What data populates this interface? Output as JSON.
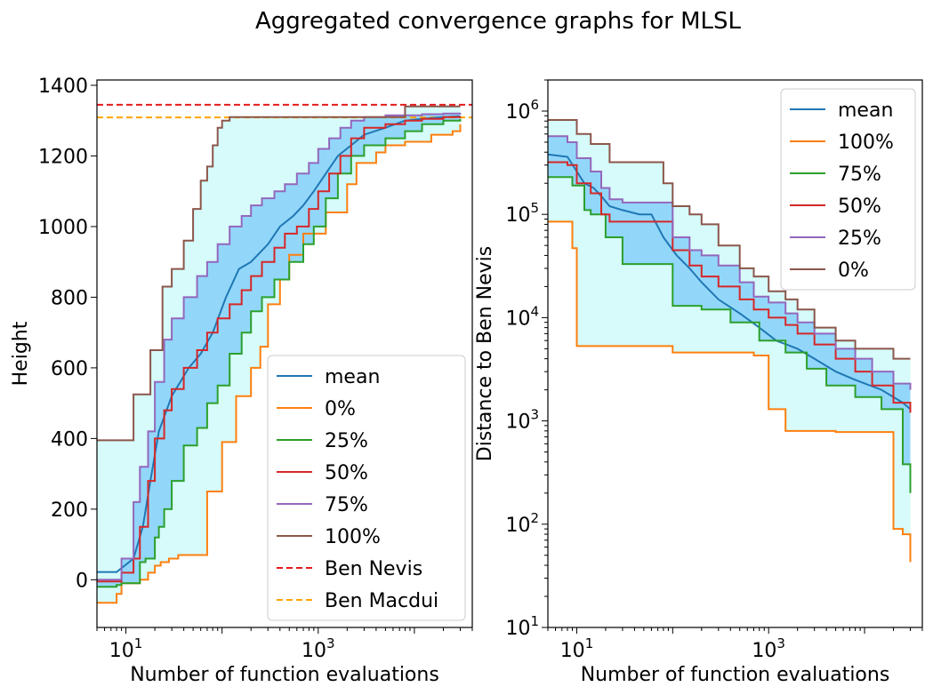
{
  "figure": {
    "title": "Aggregated convergence graphs for MLSL"
  },
  "chart_data": [
    {
      "type": "line",
      "title": "",
      "xlabel": "Number of function evaluations",
      "ylabel": "Height",
      "xscale": "log",
      "xlim": [
        5,
        40000
      ],
      "ylim": [
        -135,
        1415
      ],
      "xticks": [
        {
          "value": 10,
          "base": "10",
          "exp": "1"
        },
        {
          "value": 1000,
          "base": "10",
          "exp": "3"
        }
      ],
      "yticks": [
        0,
        200,
        400,
        600,
        800,
        1000,
        1200,
        1400
      ],
      "legend_position": "lower-right",
      "grid": false,
      "bands": [
        {
          "lower": "0%",
          "upper": "100%",
          "color": "#d6fbfa"
        },
        {
          "lower": "25%",
          "upper": "75%",
          "color": "#92d7f9"
        }
      ],
      "series": [
        {
          "name": "mean",
          "color": "#1f77b4",
          "step": false,
          "x": [
            5,
            8,
            12,
            15,
            18,
            22,
            30,
            45,
            60,
            80,
            110,
            150,
            200,
            300,
            400,
            550,
            700,
            900,
            1200,
            1600,
            2200,
            3000,
            5000,
            8000,
            12000,
            20000,
            30000
          ],
          "y": [
            22,
            22,
            60,
            150,
            280,
            420,
            520,
            600,
            640,
            700,
            800,
            880,
            900,
            950,
            1000,
            1030,
            1060,
            1100,
            1150,
            1200,
            1230,
            1260,
            1280,
            1300,
            1305,
            1310,
            1312
          ]
        },
        {
          "name": "0%",
          "color": "#ff7f0e",
          "step": true,
          "x": [
            5,
            7,
            8,
            9,
            14,
            17,
            20,
            23,
            28,
            35,
            60,
            70,
            100,
            140,
            200,
            250,
            300,
            400,
            500,
            700,
            1200,
            2000,
            2500,
            4000,
            5000,
            8000,
            15000,
            25000,
            30000
          ],
          "y": [
            -65,
            -65,
            -40,
            -10,
            0,
            20,
            40,
            50,
            60,
            70,
            70,
            250,
            390,
            520,
            600,
            660,
            780,
            850,
            920,
            980,
            1040,
            1120,
            1180,
            1210,
            1230,
            1240,
            1260,
            1270,
            1290
          ]
        },
        {
          "name": "25%",
          "color": "#2ca02c",
          "step": true,
          "x": [
            5,
            8,
            9,
            14,
            16,
            20,
            22,
            25,
            30,
            40,
            55,
            70,
            90,
            120,
            160,
            200,
            260,
            350,
            500,
            700,
            900,
            1200,
            1600,
            2200,
            3000,
            5000,
            8000,
            12000,
            20000,
            30000
          ],
          "y": [
            -20,
            -15,
            -10,
            50,
            60,
            120,
            150,
            200,
            280,
            380,
            430,
            500,
            550,
            640,
            700,
            760,
            800,
            850,
            900,
            950,
            1000,
            1080,
            1150,
            1200,
            1230,
            1250,
            1270,
            1290,
            1300,
            1305
          ]
        },
        {
          "name": "50%",
          "color": "#d62728",
          "step": true,
          "x": [
            5,
            8,
            9,
            12,
            14,
            17,
            20,
            25,
            30,
            40,
            55,
            70,
            90,
            120,
            160,
            200,
            260,
            350,
            450,
            600,
            800,
            1000,
            1300,
            1700,
            2200,
            3000,
            5000,
            8000,
            12000,
            20000,
            30000
          ],
          "y": [
            -5,
            -5,
            20,
            60,
            150,
            280,
            400,
            480,
            540,
            600,
            650,
            700,
            740,
            780,
            820,
            860,
            900,
            940,
            980,
            1000,
            1050,
            1100,
            1150,
            1200,
            1250,
            1280,
            1290,
            1300,
            1305,
            1310,
            1312
          ]
        },
        {
          "name": "75%",
          "color": "#9467bd",
          "step": true,
          "x": [
            5,
            8,
            9,
            12,
            14,
            17,
            20,
            25,
            30,
            40,
            55,
            70,
            90,
            120,
            160,
            200,
            260,
            350,
            450,
            600,
            800,
            1000,
            1300,
            1700,
            2200,
            3000,
            5000,
            8000,
            12000,
            20000,
            30000
          ],
          "y": [
            0,
            0,
            60,
            220,
            320,
            420,
            560,
            680,
            740,
            800,
            860,
            900,
            950,
            1000,
            1030,
            1060,
            1080,
            1100,
            1120,
            1150,
            1180,
            1220,
            1250,
            1280,
            1300,
            1310,
            1315,
            1315,
            1318,
            1320,
            1322
          ]
        },
        {
          "name": "100%",
          "color": "#8c564b",
          "step": true,
          "x": [
            5,
            9,
            12,
            18,
            24,
            30,
            40,
            50,
            60,
            70,
            80,
            90,
            100,
            120,
            150,
            200,
            300,
            400,
            500,
            700,
            1000,
            2000,
            5000,
            8000,
            15000,
            25000,
            30000
          ],
          "y": [
            395,
            395,
            525,
            650,
            830,
            880,
            960,
            1050,
            1130,
            1170,
            1230,
            1280,
            1300,
            1310,
            1310,
            1310,
            1310,
            1310,
            1310,
            1310,
            1310,
            1310,
            1310,
            1340,
            1340,
            1340,
            1340
          ]
        }
      ],
      "hlines": [
        {
          "name": "Ben Nevis",
          "value": 1345,
          "color": "#e41a1c",
          "dash": "dashed"
        },
        {
          "name": "Ben Macdui",
          "value": 1309,
          "color": "#ffa500",
          "dash": "dashed"
        }
      ]
    },
    {
      "type": "line",
      "title": "",
      "xlabel": "Number of function evaluations",
      "ylabel": "Distance to Ben Nevis",
      "xscale": "log",
      "yscale": "log",
      "xlim": [
        5,
        40000
      ],
      "ylim": [
        10,
        2000000
      ],
      "xticks": [
        {
          "value": 10,
          "base": "10",
          "exp": "1"
        },
        {
          "value": 1000,
          "base": "10",
          "exp": "3"
        }
      ],
      "yticks": [
        {
          "value": 10,
          "base": "10",
          "exp": "1"
        },
        {
          "value": 100,
          "base": "10",
          "exp": "2"
        },
        {
          "value": 1000,
          "base": "10",
          "exp": "3"
        },
        {
          "value": 10000,
          "base": "10",
          "exp": "4"
        },
        {
          "value": 100000,
          "base": "10",
          "exp": "5"
        },
        {
          "value": 1000000,
          "base": "10",
          "exp": "6"
        }
      ],
      "legend_position": "upper-right",
      "grid": false,
      "bands": [
        {
          "lower": "100%",
          "upper": "0%",
          "color": "#d6fbfa"
        },
        {
          "lower": "75%",
          "upper": "25%",
          "color": "#92d7f9"
        }
      ],
      "series": [
        {
          "name": "mean",
          "color": "#1f77b4",
          "step": false,
          "x": [
            5,
            8,
            12,
            15,
            18,
            22,
            30,
            45,
            60,
            80,
            110,
            150,
            200,
            300,
            500,
            800,
            1200,
            2000,
            3000,
            5000,
            8000,
            15000,
            25000,
            30000
          ],
          "y": [
            380000,
            360000,
            200000,
            180000,
            150000,
            120000,
            110000,
            100000,
            100000,
            60000,
            40000,
            30000,
            22000,
            15000,
            11000,
            8000,
            6000,
            5000,
            4000,
            3000,
            2500,
            2000,
            1500,
            1300
          ]
        },
        {
          "name": "100%",
          "color": "#ff7f0e",
          "step": true,
          "x": [
            5,
            7,
            8,
            9,
            10,
            20,
            100,
            300,
            700,
            1000,
            1500,
            2000,
            5000,
            15000,
            20000,
            25000,
            30000
          ],
          "y": [
            85000,
            85000,
            85000,
            47000,
            5300,
            5300,
            4600,
            4600,
            4300,
            1300,
            800,
            800,
            780,
            780,
            90,
            80,
            43
          ]
        },
        {
          "name": "75%",
          "color": "#2ca02c",
          "step": true,
          "x": [
            5,
            8,
            9,
            12,
            14,
            17,
            20,
            30,
            60,
            100,
            200,
            400,
            800,
            1500,
            2500,
            4000,
            8000,
            15000,
            25000,
            30000
          ],
          "y": [
            230000,
            230000,
            190000,
            110000,
            100000,
            100000,
            60000,
            33000,
            33000,
            13000,
            12000,
            9000,
            6000,
            4600,
            3200,
            2200,
            1700,
            1300,
            380,
            200
          ]
        },
        {
          "name": "50%",
          "color": "#d62728",
          "step": true,
          "x": [
            5,
            8,
            10,
            14,
            18,
            22,
            30,
            60,
            100,
            150,
            200,
            300,
            500,
            700,
            1000,
            1500,
            2000,
            3000,
            5000,
            8000,
            12000,
            20000,
            30000
          ],
          "y": [
            320000,
            300000,
            200000,
            160000,
            100000,
            85000,
            85000,
            85000,
            45000,
            32000,
            25000,
            20000,
            15000,
            12000,
            10000,
            8500,
            7000,
            5500,
            4000,
            3000,
            2200,
            1500,
            1200
          ]
        },
        {
          "name": "25%",
          "color": "#9467bd",
          "step": true,
          "x": [
            5,
            8,
            10,
            14,
            18,
            22,
            30,
            60,
            100,
            150,
            200,
            300,
            500,
            700,
            1000,
            1500,
            2000,
            3000,
            5000,
            8000,
            12000,
            20000,
            30000
          ],
          "y": [
            570000,
            500000,
            350000,
            260000,
            180000,
            140000,
            130000,
            130000,
            60000,
            45000,
            40000,
            32000,
            22000,
            16000,
            14000,
            11000,
            9000,
            7000,
            5000,
            4000,
            3000,
            2300,
            2000
          ]
        },
        {
          "name": "0%",
          "color": "#8c564b",
          "step": true,
          "x": [
            5,
            8,
            10,
            14,
            18,
            22,
            30,
            40,
            60,
            80,
            100,
            150,
            200,
            300,
            500,
            700,
            1000,
            1500,
            2000,
            3000,
            5000,
            8000,
            12000,
            20000,
            30000
          ],
          "y": [
            820000,
            820000,
            600000,
            480000,
            480000,
            320000,
            320000,
            320000,
            320000,
            200000,
            120000,
            100000,
            80000,
            50000,
            30000,
            25000,
            18000,
            15000,
            12000,
            8000,
            6000,
            5000,
            5000,
            4000,
            4000
          ]
        }
      ]
    }
  ]
}
